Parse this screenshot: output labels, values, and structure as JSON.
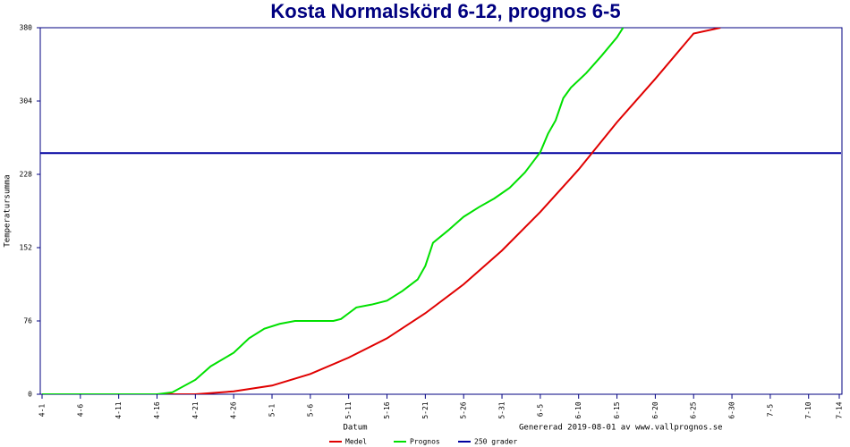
{
  "chart_data": {
    "type": "line",
    "title": "Kosta Normalskörd 6-12, prognos 6-5",
    "y_label": "Temperatursumma",
    "x_label": "Datum",
    "annotation": "Genererad 2019-08-01 av www.vallprognos.se",
    "xlim": [
      0,
      104
    ],
    "xticks": [
      {
        "value": 0,
        "label": "4-1"
      },
      {
        "value": 5,
        "label": "4-6"
      },
      {
        "value": 10,
        "label": "4-11"
      },
      {
        "value": 15,
        "label": "4-16"
      },
      {
        "value": 20,
        "label": "4-21"
      },
      {
        "value": 25,
        "label": "4-26"
      },
      {
        "value": 30,
        "label": "5-1"
      },
      {
        "value": 35,
        "label": "5-6"
      },
      {
        "value": 40,
        "label": "5-11"
      },
      {
        "value": 45,
        "label": "5-16"
      },
      {
        "value": 50,
        "label": "5-21"
      },
      {
        "value": 55,
        "label": "5-26"
      },
      {
        "value": 60,
        "label": "5-31"
      },
      {
        "value": 65,
        "label": "6-5"
      },
      {
        "value": 70,
        "label": "6-10"
      },
      {
        "value": 75,
        "label": "6-15"
      },
      {
        "value": 80,
        "label": "6-20"
      },
      {
        "value": 85,
        "label": "6-25"
      },
      {
        "value": 90,
        "label": "6-30"
      },
      {
        "value": 95,
        "label": "7-5"
      },
      {
        "value": 100,
        "label": "7-10"
      },
      {
        "value": 104,
        "label": "7-14"
      }
    ],
    "ylim": [
      0,
      380
    ],
    "yticks": [
      0,
      76,
      152,
      228,
      304,
      380
    ],
    "series": [
      {
        "name": "Medel",
        "color": "#e00000",
        "x": [
          0,
          5,
          10,
          15,
          20,
          25,
          30,
          35,
          40,
          45,
          50,
          55,
          60,
          65,
          70,
          75,
          80,
          85,
          88.5
        ],
        "values": [
          0,
          0,
          0,
          0,
          0,
          3,
          9,
          21,
          38,
          58,
          84,
          114,
          149,
          189,
          233,
          282,
          327,
          374,
          380
        ]
      },
      {
        "name": "Prognos",
        "color": "#00e000",
        "x": [
          0,
          5,
          10,
          15,
          17,
          20,
          22,
          25,
          27,
          29,
          31,
          33,
          35,
          38,
          39,
          40,
          41,
          43,
          45,
          47,
          49,
          50,
          51,
          53,
          55,
          57,
          59,
          61,
          63,
          65,
          66,
          67,
          68,
          69,
          71,
          73,
          75,
          75.8
        ],
        "values": [
          0,
          0,
          0,
          0,
          2,
          15,
          29,
          43,
          58,
          68,
          73,
          76,
          76,
          76,
          78,
          84,
          90,
          93,
          97,
          107,
          119,
          133,
          157,
          170,
          184,
          194,
          203,
          214,
          230,
          251,
          270,
          284,
          307,
          318,
          333,
          351,
          370,
          380
        ]
      }
    ],
    "reference_line": {
      "name": "250 grader",
      "value": 250,
      "color": "#0000a0"
    }
  }
}
